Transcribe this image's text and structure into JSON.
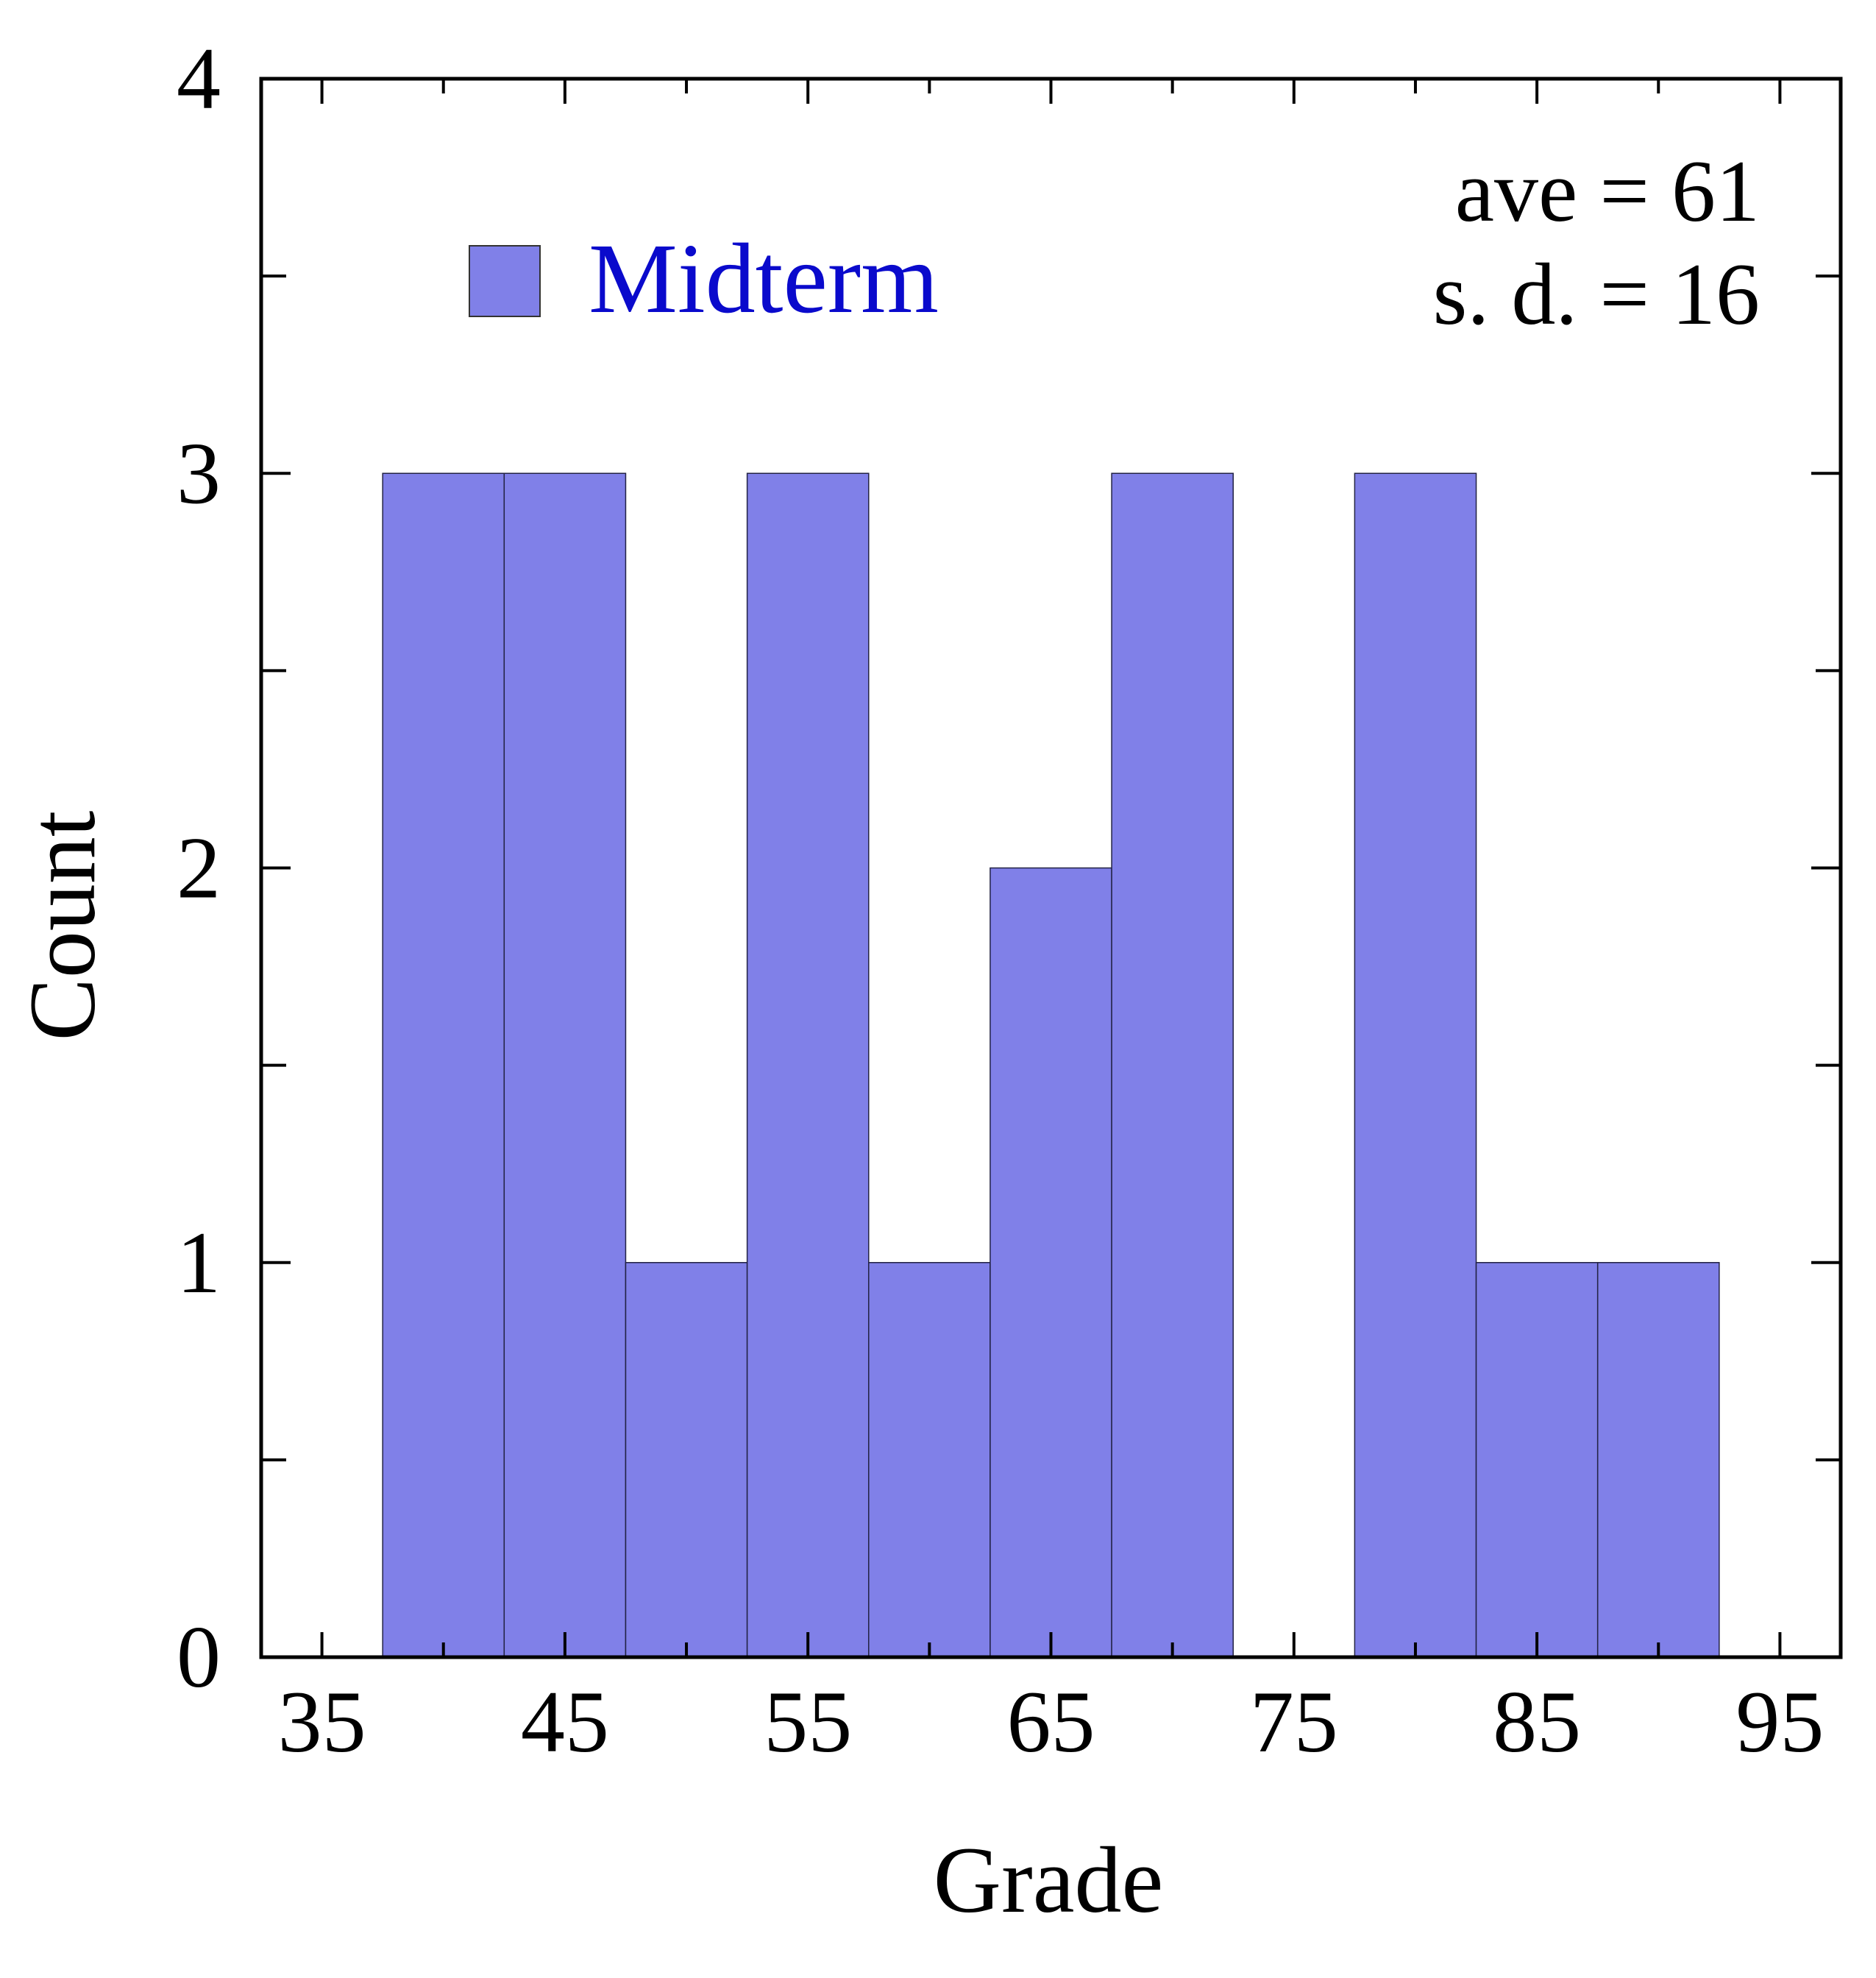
{
  "chart_data": {
    "type": "bar",
    "title": "",
    "xlabel": "Grade",
    "ylabel": "Count",
    "bin_width": 5,
    "bins": [
      {
        "start": 37.5,
        "end": 42.5,
        "count": 3
      },
      {
        "start": 42.5,
        "end": 47.5,
        "count": 3
      },
      {
        "start": 47.5,
        "end": 52.5,
        "count": 1
      },
      {
        "start": 52.5,
        "end": 57.5,
        "count": 3
      },
      {
        "start": 57.5,
        "end": 62.5,
        "count": 1
      },
      {
        "start": 62.5,
        "end": 67.5,
        "count": 2
      },
      {
        "start": 67.5,
        "end": 72.5,
        "count": 3
      },
      {
        "start": 72.5,
        "end": 77.5,
        "count": 0
      },
      {
        "start": 77.5,
        "end": 82.5,
        "count": 3
      },
      {
        "start": 82.5,
        "end": 87.5,
        "count": 1
      },
      {
        "start": 87.5,
        "end": 92.5,
        "count": 1
      }
    ],
    "series": [
      {
        "name": "Midterm",
        "color": "#8080e8"
      }
    ],
    "xlim": [
      32.5,
      97.5
    ],
    "ylim": [
      0,
      4
    ],
    "xticks": [
      35,
      45,
      55,
      65,
      75,
      85,
      95
    ],
    "xtick_labels": [
      "35",
      "45",
      "55",
      "65",
      "75",
      "85",
      "95"
    ],
    "xminor_step": 5,
    "yticks": [
      0,
      1,
      2,
      3,
      4
    ],
    "ytick_labels": [
      "0",
      "1",
      "2",
      "3",
      "4"
    ],
    "yminor_step": 0.5,
    "grid": false,
    "legend": {
      "label": "Midterm",
      "position": "top-left",
      "text_color": "#0a0acc"
    },
    "annotations": {
      "average": "ave = 61",
      "std_dev": "s. d. = 16"
    }
  }
}
